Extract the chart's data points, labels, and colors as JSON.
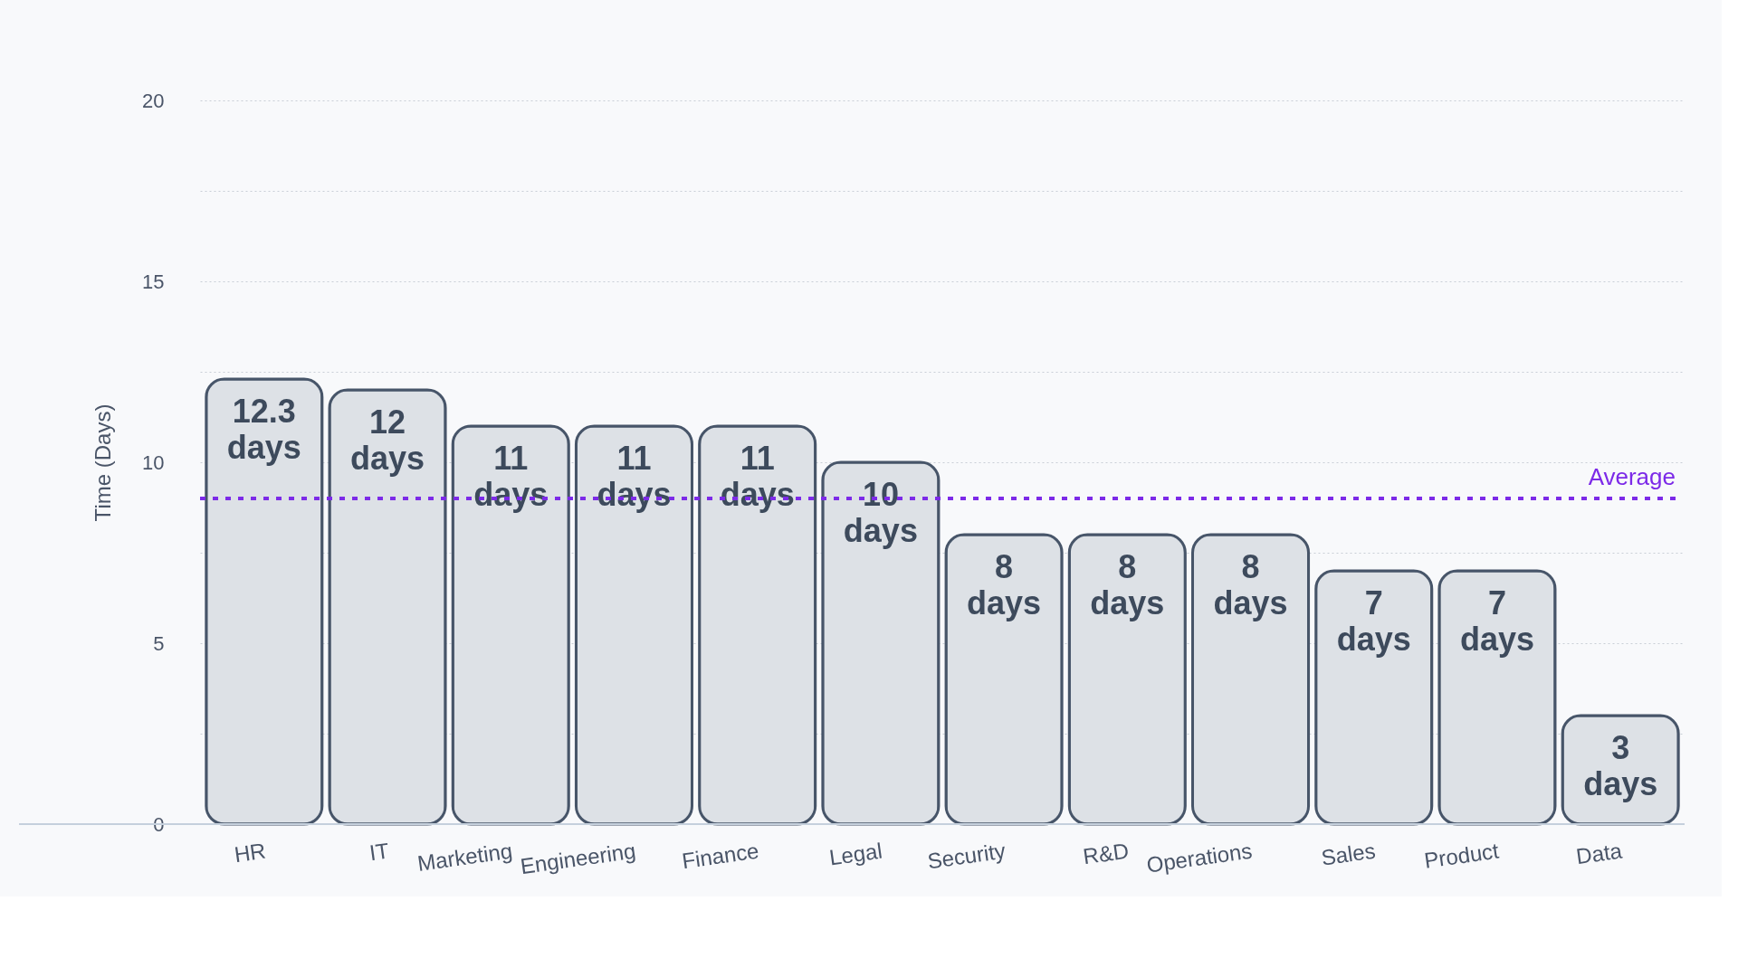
{
  "chart_data": {
    "type": "bar",
    "ylabel": "Time (Days)",
    "categories": [
      "HR",
      "IT",
      "Marketing",
      "Engineering",
      "Finance",
      "Legal",
      "Security",
      "R&D",
      "Operations",
      "Sales",
      "Product",
      "Data"
    ],
    "values": [
      12.3,
      12,
      11,
      11,
      11,
      10,
      8,
      8,
      8,
      7,
      7,
      3
    ],
    "value_labels": [
      "12.3 days",
      "12 days",
      "11 days",
      "11 days",
      "11 days",
      "10 days",
      "8 days",
      "8 days",
      "8 days",
      "7 days",
      "7 days",
      "3 days"
    ],
    "color": "#dde1e6",
    "ylim": [
      0,
      20
    ],
    "yticks": [
      0,
      {
        "value": 2.5,
        "label": null
      },
      5,
      {
        "value": 7.5,
        "label": null
      },
      10,
      {
        "value": 12.5,
        "label": null
      },
      15,
      {
        "value": 17.5,
        "label": null
      },
      20
    ],
    "grid": "y",
    "ref_lines": [
      {
        "axis": "y",
        "value": 9,
        "label": "Average",
        "color": "#7c2ae8",
        "line_style": "dotted"
      }
    ]
  }
}
